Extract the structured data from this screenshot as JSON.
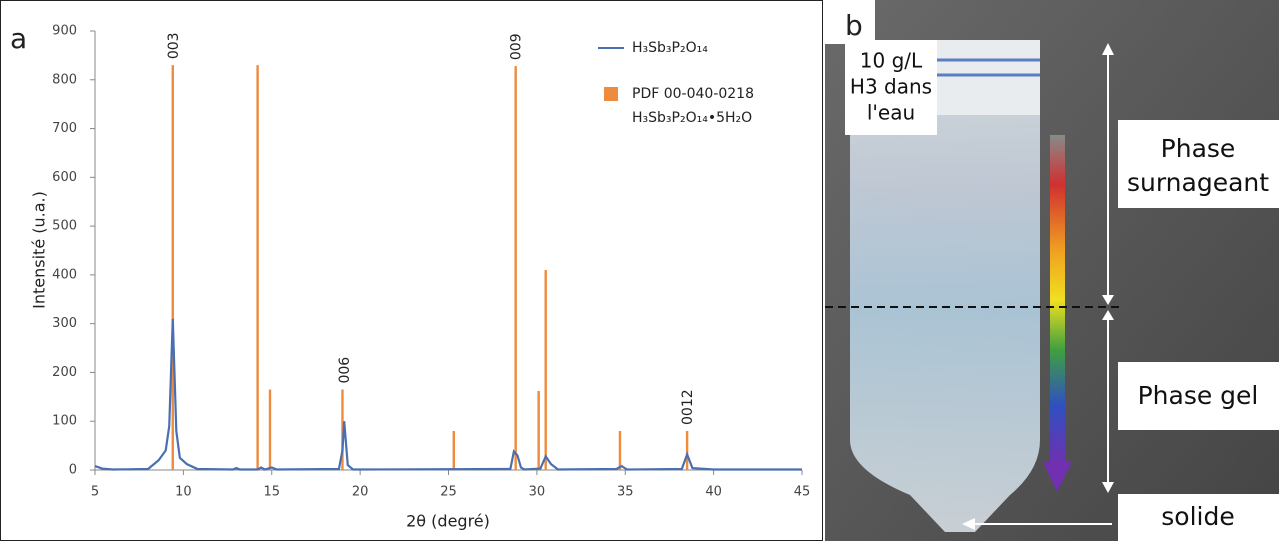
{
  "chart_data": {
    "type": "line",
    "panel_label": "a",
    "xlabel": "2θ (degré)",
    "ylabel": "Intensité (u.a.)",
    "xlim": [
      5,
      45
    ],
    "xticks": [
      5,
      10,
      15,
      20,
      25,
      30,
      35,
      40,
      45
    ],
    "ylim": [
      0,
      900
    ],
    "yticks": [
      0,
      100,
      200,
      300,
      400,
      500,
      600,
      700,
      800,
      900
    ],
    "series": [
      {
        "name": [
          "H₃Sb₃P₂O₁₄"
        ],
        "type": "line",
        "color": "#4a6fb0",
        "x": [
          5,
          5.4,
          6,
          8,
          8.6,
          9,
          9.2,
          9.4,
          9.6,
          9.8,
          10.2,
          10.8,
          12.8,
          13,
          13.2,
          14.2,
          14.4,
          14.6,
          15,
          15.3,
          18.8,
          19.0,
          19.1,
          19.3,
          19.6,
          28.5,
          28.7,
          28.9,
          29.1,
          29.3,
          30.2,
          30.5,
          30.8,
          31.2,
          34.5,
          34.8,
          35.1,
          38.2,
          38.5,
          38.8,
          40,
          45
        ],
        "values": [
          8,
          3,
          1,
          2,
          20,
          40,
          90,
          310,
          80,
          25,
          12,
          2,
          1,
          4,
          1,
          1,
          5,
          1,
          5,
          1,
          2,
          40,
          100,
          10,
          1,
          2,
          38,
          30,
          5,
          1,
          3,
          28,
          12,
          1,
          2,
          8,
          1,
          2,
          32,
          4,
          1,
          1
        ]
      },
      {
        "name": [
          "PDF 00-040-0218",
          "H₃Sb₃P₂O₁₄•5H₂O"
        ],
        "type": "bar",
        "color": "#ed8b3e",
        "x": [
          9.4,
          14.2,
          14.9,
          19.0,
          25.3,
          28.8,
          30.1,
          30.5,
          34.7,
          38.5
        ],
        "values": [
          830,
          830,
          165,
          165,
          80,
          828,
          162,
          410,
          80,
          80
        ]
      }
    ],
    "annotations": [
      {
        "text": "003",
        "x": 9.4
      },
      {
        "text": "006",
        "x": 19.1
      },
      {
        "text": "009",
        "x": 28.8
      },
      {
        "text": "0012",
        "x": 38.5
      }
    ]
  },
  "panel_b": {
    "panel_label": "b",
    "tube_label": [
      "10 g/L",
      "H3 dans",
      "l'eau"
    ],
    "upper_phase": [
      "Phase",
      "surnageant"
    ],
    "lower_phase": [
      "Phase gel"
    ],
    "bottom": [
      "solide"
    ]
  }
}
